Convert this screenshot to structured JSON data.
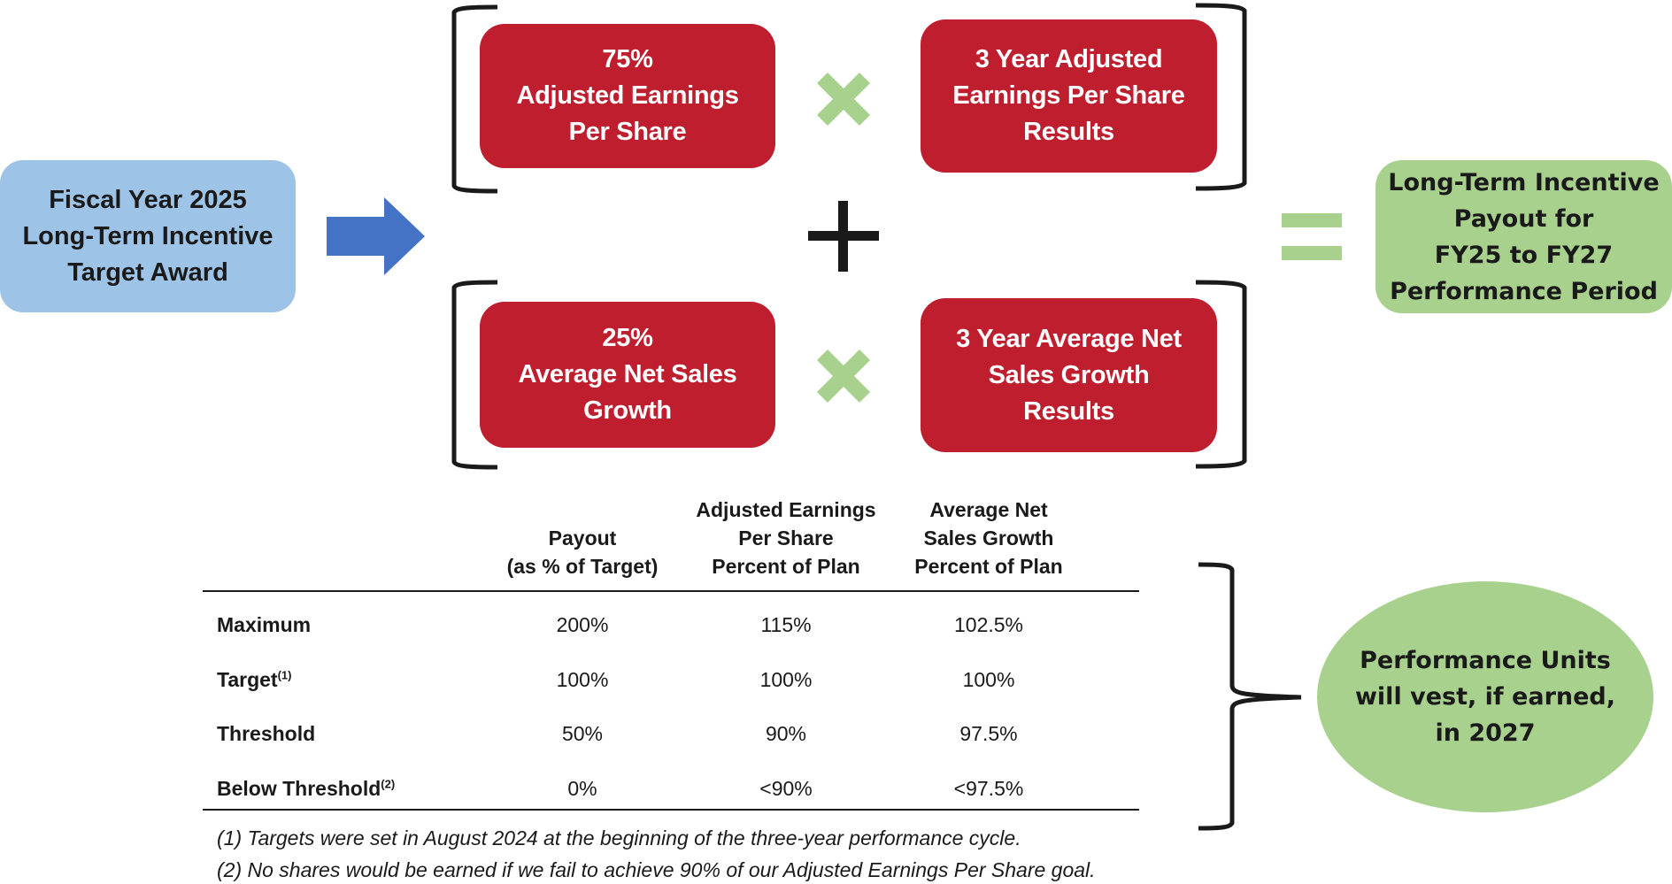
{
  "colors": {
    "red": "#be1e2d",
    "blue_box": "#9dc3e6",
    "arrow": "#4472c4",
    "green": "#a9d18e"
  },
  "start_box": {
    "lines": [
      "Fiscal Year 2025",
      "Long-Term Incentive",
      "Target Award"
    ]
  },
  "eps_weight_box": {
    "lines": [
      "75%",
      "Adjusted Earnings",
      "Per Share"
    ]
  },
  "eps_result_box": {
    "lines": [
      "3 Year Adjusted",
      "Earnings Per Share",
      "Results"
    ]
  },
  "sales_weight_box": {
    "lines": [
      "25%",
      "Average Net Sales",
      "Growth"
    ]
  },
  "sales_result_box": {
    "lines": [
      "3 Year Average Net",
      "Sales Growth",
      "Results"
    ]
  },
  "result_box": {
    "lines": [
      "Long-Term Incentive",
      "Payout for",
      "FY25 to FY27",
      "Performance Period"
    ]
  },
  "vest_ellipse": {
    "lines": [
      "Performance Units",
      "will vest, if earned,",
      "in 2027"
    ]
  },
  "table": {
    "headers": [
      {
        "lines": [
          "Payout",
          "(as % of Target)"
        ]
      },
      {
        "lines": [
          "Adjusted Earnings",
          "Per Share",
          "Percent of Plan"
        ]
      },
      {
        "lines": [
          "Average Net",
          "Sales Growth",
          "Percent of Plan"
        ]
      }
    ],
    "rows": [
      {
        "label": "Maximum",
        "sup": "",
        "values": [
          "200%",
          "115%",
          "102.5%"
        ]
      },
      {
        "label": "Target",
        "sup": "(1)",
        "values": [
          "100%",
          "100%",
          "100%"
        ]
      },
      {
        "label": "Threshold",
        "sup": "",
        "values": [
          "50%",
          "90%",
          "97.5%"
        ]
      },
      {
        "label": "Below Threshold",
        "sup": "(2)",
        "values": [
          "0%",
          "<90%",
          "<97.5%"
        ]
      }
    ]
  },
  "footnotes": [
    "(1) Targets were set in August 2024 at the beginning of the three-year performance cycle.",
    "(2) No shares would be earned if we fail to achieve 90% of our Adjusted Earnings Per Share goal."
  ]
}
